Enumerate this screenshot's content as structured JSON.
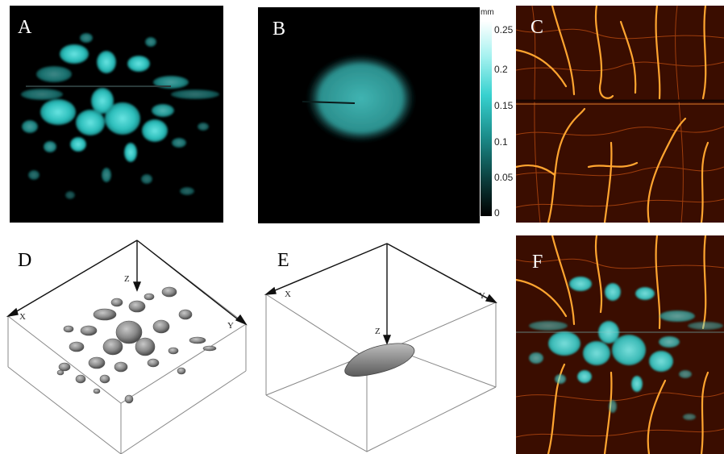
{
  "panels": {
    "a": {
      "label": "A"
    },
    "b": {
      "label": "B"
    },
    "c": {
      "label": "C"
    },
    "d": {
      "label": "D",
      "axes": {
        "x": "X",
        "y": "Y",
        "z": "Z"
      }
    },
    "e": {
      "label": "E",
      "axes": {
        "x": "X",
        "y": "Y",
        "z": "Z"
      }
    },
    "f": {
      "label": "F"
    }
  },
  "colorbar": {
    "unit": "mm",
    "ticks": [
      "0.25",
      "0.2",
      "0.15",
      "0.1",
      "0.05",
      "0"
    ]
  },
  "colors": {
    "lesion": "#3fd6d3",
    "vessel": "#ff9a1e",
    "vessel_bg": "#3a0d00",
    "surface": "#8a8a8a"
  }
}
